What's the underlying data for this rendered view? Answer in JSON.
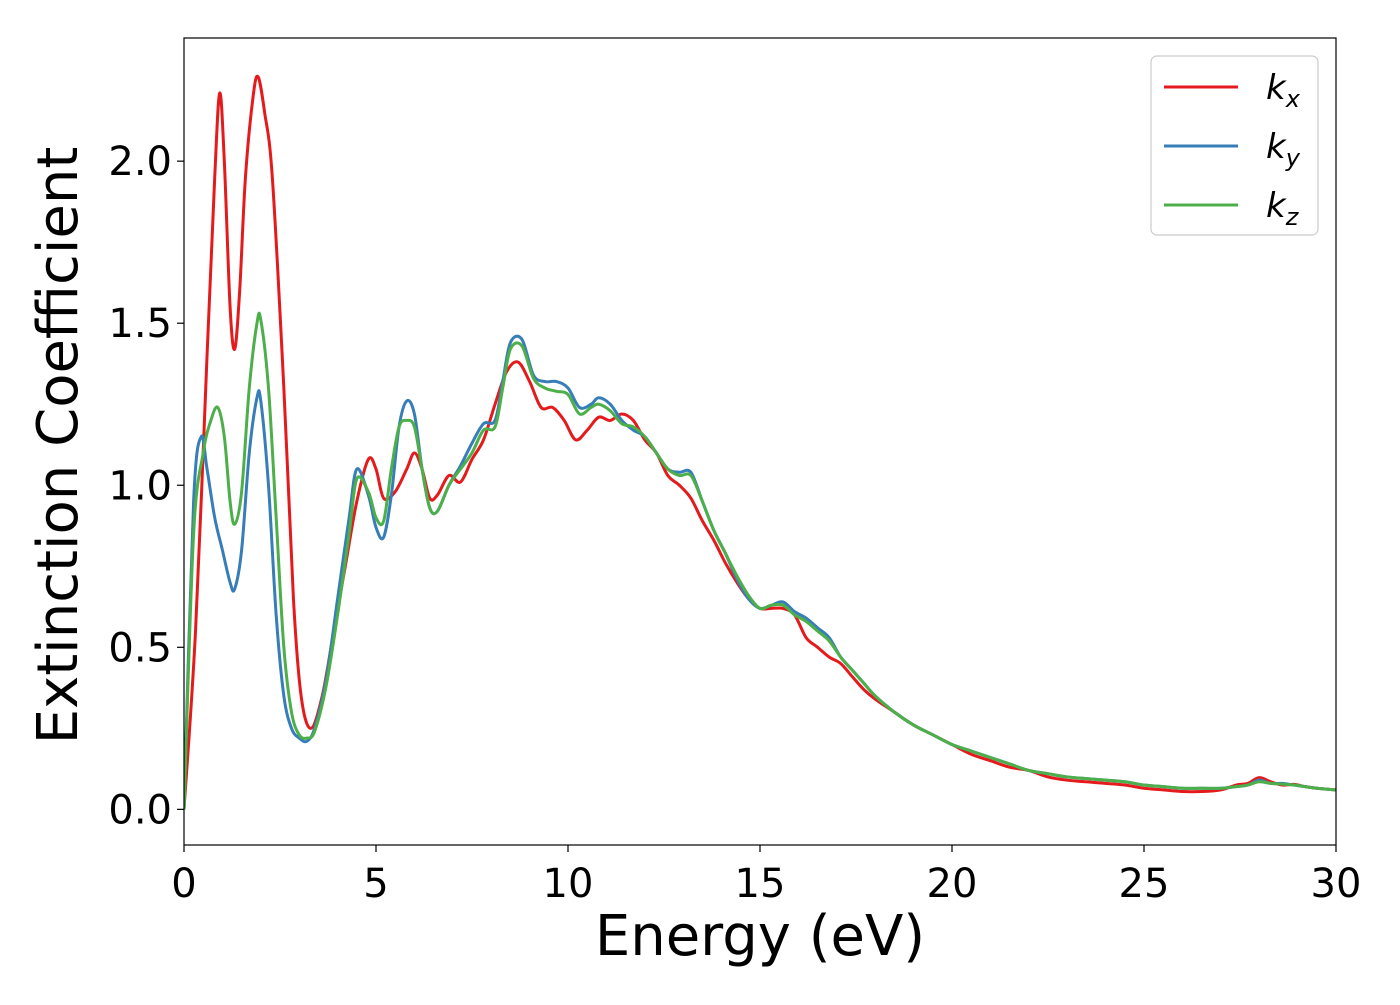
{
  "chart_data": {
    "type": "line",
    "title": "",
    "xlabel": "Energy (eV)",
    "ylabel": "Extinction Coefficient",
    "xlim": [
      0,
      30
    ],
    "ylim": [
      -0.11,
      2.38
    ],
    "xticks": [
      0,
      5,
      10,
      15,
      20,
      25,
      30
    ],
    "yticks": [
      0.0,
      0.5,
      1.0,
      1.5,
      2.0
    ],
    "xtick_labels": [
      "0",
      "5",
      "10",
      "15",
      "20",
      "25",
      "30"
    ],
    "ytick_labels": [
      "0.0",
      "0.5",
      "1.0",
      "1.5",
      "2.0"
    ],
    "grid": false,
    "legend_position": "top-right",
    "series": [
      {
        "name": "k_x",
        "label_base": "k",
        "label_sub": "x",
        "color": "#e41a1c",
        "x": [
          0,
          0.3,
          0.6,
          0.8,
          0.93,
          1.05,
          1.2,
          1.32,
          1.45,
          1.6,
          1.8,
          1.93,
          2.1,
          2.3,
          2.6,
          2.85,
          3.05,
          3.3,
          3.6,
          3.9,
          4.2,
          4.5,
          4.8,
          5.0,
          5.2,
          5.5,
          5.8,
          6.0,
          6.2,
          6.4,
          6.6,
          6.9,
          7.2,
          7.5,
          7.8,
          8.1,
          8.4,
          8.7,
          9.0,
          9.3,
          9.6,
          9.9,
          10.2,
          10.5,
          10.8,
          11.1,
          11.4,
          11.7,
          12.0,
          12.3,
          12.6,
          12.9,
          13.2,
          13.5,
          13.8,
          14.1,
          14.4,
          14.7,
          15.0,
          15.3,
          15.6,
          15.9,
          16.2,
          16.5,
          16.8,
          17.1,
          17.4,
          17.7,
          18.0,
          18.5,
          19.0,
          19.5,
          20.0,
          20.5,
          21.0,
          21.5,
          22.0,
          22.5,
          23.0,
          23.5,
          24.0,
          24.5,
          25.0,
          25.5,
          26.0,
          26.5,
          27.0,
          27.4,
          27.7,
          28.0,
          28.3,
          28.6,
          28.9,
          29.2,
          29.5,
          30.0
        ],
        "y": [
          0.0,
          0.55,
          1.4,
          1.95,
          2.21,
          2.0,
          1.55,
          1.42,
          1.6,
          1.95,
          2.2,
          2.26,
          2.15,
          1.95,
          1.3,
          0.65,
          0.35,
          0.25,
          0.35,
          0.55,
          0.75,
          0.95,
          1.08,
          1.05,
          0.96,
          0.98,
          1.05,
          1.1,
          1.05,
          0.96,
          0.97,
          1.03,
          1.01,
          1.08,
          1.14,
          1.25,
          1.35,
          1.38,
          1.32,
          1.24,
          1.24,
          1.2,
          1.14,
          1.17,
          1.21,
          1.2,
          1.22,
          1.2,
          1.14,
          1.1,
          1.03,
          1.0,
          0.96,
          0.89,
          0.83,
          0.76,
          0.7,
          0.65,
          0.62,
          0.62,
          0.62,
          0.6,
          0.53,
          0.5,
          0.47,
          0.45,
          0.41,
          0.37,
          0.34,
          0.3,
          0.26,
          0.23,
          0.2,
          0.17,
          0.15,
          0.13,
          0.12,
          0.1,
          0.09,
          0.085,
          0.08,
          0.075,
          0.065,
          0.06,
          0.055,
          0.055,
          0.06,
          0.075,
          0.08,
          0.098,
          0.085,
          0.075,
          0.077,
          0.07,
          0.065,
          0.06
        ]
      },
      {
        "name": "k_y",
        "label_base": "k",
        "label_sub": "y",
        "color": "#377eb8",
        "x": [
          0,
          0.25,
          0.45,
          0.6,
          0.8,
          1.0,
          1.2,
          1.32,
          1.5,
          1.7,
          1.9,
          2.0,
          2.2,
          2.4,
          2.6,
          2.8,
          3.0,
          3.2,
          3.4,
          3.7,
          4.0,
          4.3,
          4.5,
          4.8,
          5.0,
          5.2,
          5.4,
          5.6,
          5.8,
          6.0,
          6.2,
          6.4,
          6.6,
          6.9,
          7.2,
          7.5,
          7.8,
          8.1,
          8.3,
          8.5,
          8.8,
          9.1,
          9.4,
          9.7,
          10.0,
          10.3,
          10.6,
          10.8,
          11.1,
          11.4,
          11.7,
          12.0,
          12.3,
          12.6,
          12.9,
          13.2,
          13.5,
          13.8,
          14.1,
          14.4,
          14.7,
          15.0,
          15.3,
          15.6,
          15.9,
          16.2,
          16.5,
          16.8,
          17.1,
          17.4,
          17.7,
          18.0,
          18.5,
          19.0,
          19.5,
          20.0,
          20.5,
          21.0,
          21.5,
          22.0,
          22.5,
          23.0,
          23.5,
          24.0,
          24.5,
          25.0,
          25.5,
          26.0,
          26.5,
          27.0,
          27.4,
          27.7,
          28.0,
          28.3,
          28.6,
          28.9,
          29.2,
          29.5,
          30.0
        ],
        "y": [
          0.0,
          0.95,
          1.15,
          1.05,
          0.9,
          0.8,
          0.7,
          0.68,
          0.8,
          1.1,
          1.27,
          1.26,
          1.0,
          0.6,
          0.35,
          0.25,
          0.22,
          0.21,
          0.25,
          0.4,
          0.65,
          0.9,
          1.05,
          0.97,
          0.87,
          0.84,
          0.97,
          1.18,
          1.26,
          1.22,
          1.05,
          0.93,
          0.92,
          1.0,
          1.06,
          1.13,
          1.19,
          1.2,
          1.32,
          1.44,
          1.45,
          1.34,
          1.32,
          1.32,
          1.3,
          1.24,
          1.25,
          1.27,
          1.25,
          1.2,
          1.17,
          1.15,
          1.1,
          1.05,
          1.04,
          1.04,
          0.95,
          0.86,
          0.79,
          0.71,
          0.65,
          0.62,
          0.63,
          0.64,
          0.61,
          0.59,
          0.56,
          0.53,
          0.47,
          0.43,
          0.39,
          0.35,
          0.3,
          0.26,
          0.23,
          0.2,
          0.18,
          0.16,
          0.14,
          0.12,
          0.11,
          0.1,
          0.095,
          0.09,
          0.085,
          0.075,
          0.07,
          0.065,
          0.065,
          0.065,
          0.07,
          0.075,
          0.09,
          0.08,
          0.08,
          0.075,
          0.07,
          0.065,
          0.06
        ]
      },
      {
        "name": "k_z",
        "label_base": "k",
        "label_sub": "z",
        "color": "#4daf4a",
        "x": [
          0,
          0.25,
          0.5,
          0.7,
          0.88,
          1.05,
          1.2,
          1.32,
          1.5,
          1.7,
          1.9,
          2.0,
          2.2,
          2.4,
          2.6,
          2.8,
          3.0,
          3.2,
          3.4,
          3.7,
          4.0,
          4.3,
          4.5,
          4.8,
          5.0,
          5.2,
          5.4,
          5.6,
          5.8,
          6.0,
          6.2,
          6.4,
          6.6,
          6.9,
          7.2,
          7.5,
          7.8,
          8.1,
          8.3,
          8.5,
          8.8,
          9.1,
          9.4,
          9.7,
          10.0,
          10.3,
          10.6,
          10.8,
          11.1,
          11.4,
          11.7,
          12.0,
          12.3,
          12.6,
          12.9,
          13.2,
          13.5,
          13.8,
          14.1,
          14.4,
          14.7,
          15.0,
          15.3,
          15.6,
          15.9,
          16.2,
          16.5,
          16.8,
          17.1,
          17.4,
          17.7,
          18.0,
          18.5,
          19.0,
          19.5,
          20.0,
          20.5,
          21.0,
          21.5,
          22.0,
          22.5,
          23.0,
          23.5,
          24.0,
          24.5,
          25.0,
          25.5,
          26.0,
          26.5,
          27.0,
          27.4,
          27.7,
          28.0,
          28.3,
          28.6,
          28.9,
          29.2,
          29.5,
          30.0
        ],
        "y": [
          0.0,
          0.85,
          1.1,
          1.2,
          1.24,
          1.15,
          0.95,
          0.88,
          0.98,
          1.3,
          1.5,
          1.51,
          1.3,
          0.9,
          0.5,
          0.3,
          0.23,
          0.22,
          0.24,
          0.38,
          0.6,
          0.85,
          1.02,
          0.98,
          0.9,
          0.89,
          1.05,
          1.18,
          1.2,
          1.18,
          1.05,
          0.93,
          0.92,
          1.0,
          1.05,
          1.1,
          1.17,
          1.18,
          1.3,
          1.42,
          1.43,
          1.33,
          1.3,
          1.29,
          1.28,
          1.22,
          1.24,
          1.25,
          1.23,
          1.19,
          1.18,
          1.15,
          1.1,
          1.05,
          1.03,
          1.03,
          0.95,
          0.86,
          0.79,
          0.72,
          0.66,
          0.62,
          0.63,
          0.63,
          0.6,
          0.58,
          0.55,
          0.52,
          0.47,
          0.43,
          0.39,
          0.35,
          0.3,
          0.26,
          0.23,
          0.2,
          0.18,
          0.16,
          0.14,
          0.12,
          0.11,
          0.1,
          0.095,
          0.09,
          0.085,
          0.075,
          0.07,
          0.065,
          0.065,
          0.065,
          0.07,
          0.075,
          0.085,
          0.08,
          0.078,
          0.075,
          0.07,
          0.065,
          0.06
        ]
      }
    ]
  }
}
